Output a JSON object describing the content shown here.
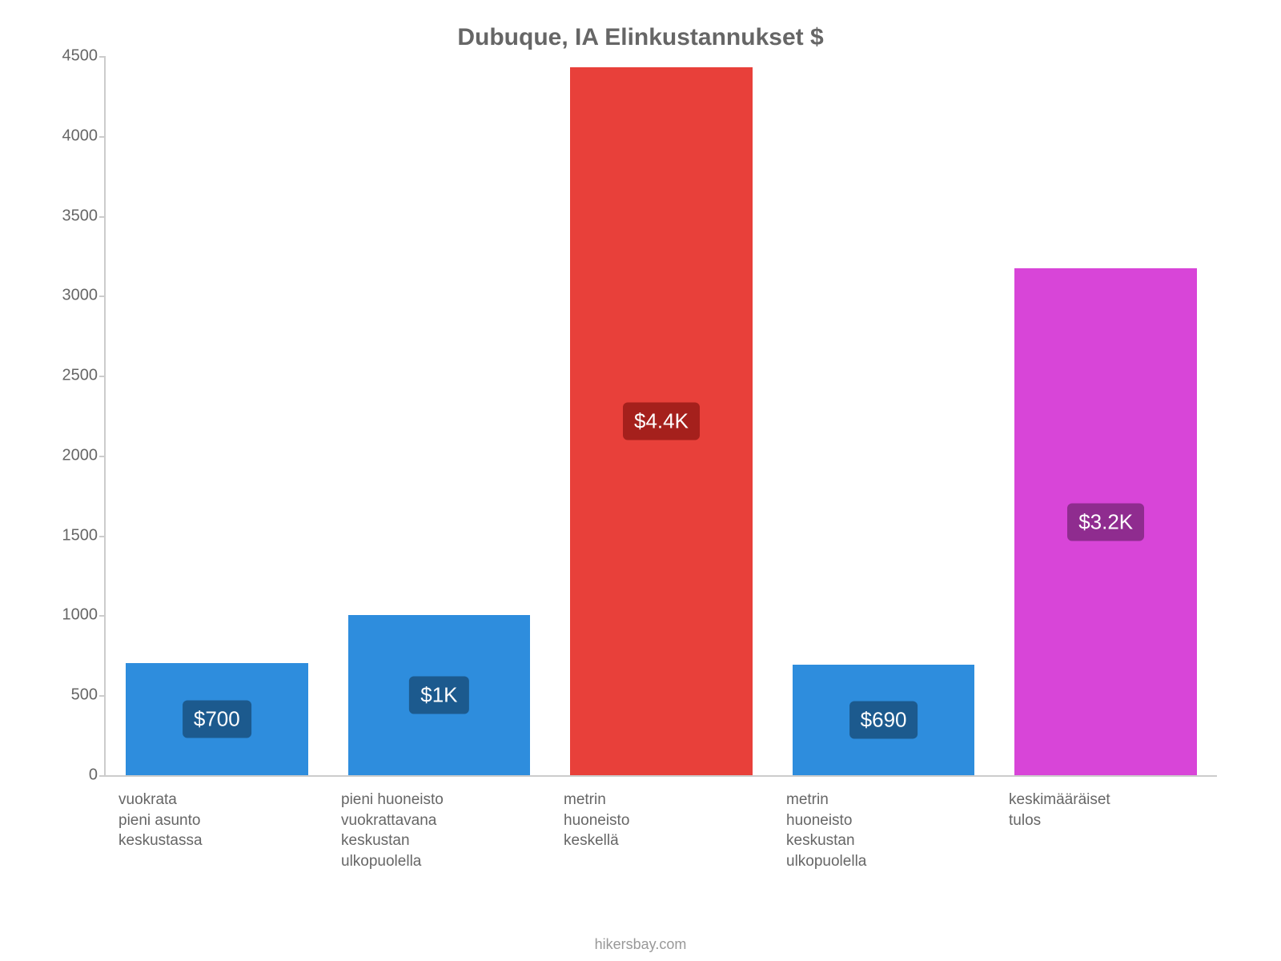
{
  "chart": {
    "type": "bar",
    "title": "Dubuque, IA Elinkustannukset $",
    "title_fontsize": 30,
    "title_color": "#666666",
    "background_color": "#ffffff",
    "axis_color": "#cccccc",
    "tick_fontsize": 20,
    "tick_color": "#666666",
    "xlabel_fontsize": 19,
    "xlabel_color": "#666666",
    "ylim": [
      0,
      4500
    ],
    "ytick_step": 500,
    "bar_width": 0.82,
    "label_radius": 6,
    "categories": [
      "vuokrata\npieni asunto\nkeskustassa",
      "pieni huoneisto\nvuokrattavana\nkeskustan\nulkopuolella",
      "metrin\nhuoneisto\nkeskellä",
      "metrin\nhuoneisto\nkeskustan\nulkopuolella",
      "keskimääräiset\ntulos"
    ],
    "values": [
      700,
      1000,
      4430,
      690,
      3170
    ],
    "value_labels": [
      "$700",
      "$1K",
      "$4.4K",
      "$690",
      "$3.2K"
    ],
    "bar_colors": [
      "#2e8ddd",
      "#2e8ddd",
      "#e8403a",
      "#2e8ddd",
      "#d845d8"
    ],
    "label_bg_colors": [
      "#1c5a8e",
      "#1c5a8e",
      "#a5201c",
      "#1c5a8e",
      "#8f2c8f"
    ],
    "value_label_fontsize": 26,
    "value_label_color": "#ffffff"
  },
  "attribution": "hikersbay.com",
  "attribution_color": "#999999"
}
